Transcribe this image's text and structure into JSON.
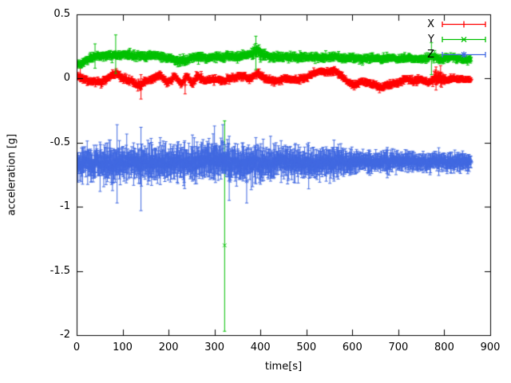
{
  "figure": {
    "background": "#ffffff"
  },
  "chart_data": {
    "type": "scatter",
    "style": "points-with-errorbars",
    "title": "",
    "xlabel": "time[s]",
    "ylabel": "acceleration [g]",
    "xlim": [
      0,
      900
    ],
    "ylim": [
      -2,
      0.5
    ],
    "xticks": [
      0,
      100,
      200,
      300,
      400,
      500,
      600,
      700,
      800,
      900
    ],
    "yticks": [
      -2,
      -1.5,
      -1,
      -0.5,
      0,
      0.5
    ],
    "grid": false,
    "legend_position": "top-right",
    "axis_color": "#000000",
    "series": [
      {
        "name": "X",
        "color": "#ff0000",
        "marker": "plus",
        "t_start": 2,
        "t_end": 858,
        "dt": 1,
        "seed": 11,
        "noise_sd": 0.008,
        "err_mean": 0.014,
        "err_var": 0.007,
        "baseline": [
          [
            0,
            0.03
          ],
          [
            12,
            0.0
          ],
          [
            30,
            -0.02
          ],
          [
            55,
            -0.03
          ],
          [
            70,
            0.01
          ],
          [
            85,
            0.04
          ],
          [
            100,
            0.0
          ],
          [
            118,
            -0.02
          ],
          [
            138,
            -0.06
          ],
          [
            150,
            -0.02
          ],
          [
            168,
            0.0
          ],
          [
            182,
            0.03
          ],
          [
            198,
            -0.04
          ],
          [
            214,
            0.02
          ],
          [
            228,
            -0.05
          ],
          [
            240,
            0.03
          ],
          [
            252,
            -0.04
          ],
          [
            264,
            0.02
          ],
          [
            278,
            -0.02
          ],
          [
            298,
            0.0
          ],
          [
            318,
            -0.02
          ],
          [
            338,
            0.0
          ],
          [
            358,
            0.02
          ],
          [
            378,
            0.0
          ],
          [
            394,
            0.04
          ],
          [
            408,
            0.0
          ],
          [
            430,
            -0.02
          ],
          [
            452,
            0.0
          ],
          [
            475,
            -0.01
          ],
          [
            495,
            0.0
          ],
          [
            512,
            0.03
          ],
          [
            530,
            0.06
          ],
          [
            548,
            0.05
          ],
          [
            562,
            0.06
          ],
          [
            576,
            0.02
          ],
          [
            590,
            -0.03
          ],
          [
            605,
            -0.05
          ],
          [
            622,
            -0.02
          ],
          [
            640,
            -0.04
          ],
          [
            660,
            -0.07
          ],
          [
            680,
            -0.05
          ],
          [
            700,
            -0.03
          ],
          [
            716,
            0.0
          ],
          [
            732,
            -0.02
          ],
          [
            750,
            0.0
          ],
          [
            766,
            -0.04
          ],
          [
            780,
            0.01
          ],
          [
            800,
            -0.02
          ],
          [
            820,
            0.0
          ],
          [
            858,
            -0.01
          ]
        ],
        "noise_profile": [
          [
            0,
            1
          ],
          [
            770,
            1
          ],
          [
            780,
            1.8
          ],
          [
            795,
            1.8
          ],
          [
            805,
            1
          ],
          [
            858,
            0.8
          ]
        ],
        "outliers": [
          {
            "t": 8,
            "y": 0.03,
            "lo": -0.02,
            "hi": 0.08
          },
          {
            "t": 140,
            "y": -0.06,
            "lo": -0.16,
            "hi": 0.03
          },
          {
            "t": 236,
            "y": -0.05,
            "lo": -0.12,
            "hi": 0.02
          },
          {
            "t": 782,
            "y": 0.0,
            "lo": -0.09,
            "hi": 0.09
          },
          {
            "t": 792,
            "y": 0.02,
            "lo": -0.06,
            "hi": 0.1
          }
        ]
      },
      {
        "name": "Y",
        "color": "#00c000",
        "marker": "cross",
        "t_start": 2,
        "t_end": 858,
        "dt": 1,
        "seed": 23,
        "noise_sd": 0.009,
        "err_mean": 0.016,
        "err_var": 0.008,
        "baseline": [
          [
            0,
            0.1
          ],
          [
            10,
            0.11
          ],
          [
            25,
            0.15
          ],
          [
            40,
            0.17
          ],
          [
            60,
            0.18
          ],
          [
            80,
            0.18
          ],
          [
            100,
            0.19
          ],
          [
            120,
            0.18
          ],
          [
            140,
            0.17
          ],
          [
            160,
            0.18
          ],
          [
            180,
            0.17
          ],
          [
            200,
            0.16
          ],
          [
            220,
            0.14
          ],
          [
            235,
            0.13
          ],
          [
            250,
            0.16
          ],
          [
            270,
            0.17
          ],
          [
            290,
            0.16
          ],
          [
            310,
            0.17
          ],
          [
            330,
            0.17
          ],
          [
            350,
            0.17
          ],
          [
            370,
            0.18
          ],
          [
            385,
            0.2
          ],
          [
            395,
            0.21
          ],
          [
            405,
            0.18
          ],
          [
            420,
            0.17
          ],
          [
            440,
            0.16
          ],
          [
            460,
            0.17
          ],
          [
            480,
            0.16
          ],
          [
            500,
            0.17
          ],
          [
            520,
            0.17
          ],
          [
            540,
            0.16
          ],
          [
            560,
            0.17
          ],
          [
            580,
            0.16
          ],
          [
            600,
            0.16
          ],
          [
            620,
            0.15
          ],
          [
            640,
            0.16
          ],
          [
            660,
            0.15
          ],
          [
            680,
            0.16
          ],
          [
            700,
            0.15
          ],
          [
            720,
            0.16
          ],
          [
            740,
            0.15
          ],
          [
            760,
            0.16
          ],
          [
            780,
            0.17
          ],
          [
            790,
            0.14
          ],
          [
            800,
            0.16
          ],
          [
            820,
            0.16
          ],
          [
            840,
            0.15
          ],
          [
            858,
            0.15
          ]
        ],
        "noise_profile": [
          [
            0,
            1
          ],
          [
            380,
            1
          ],
          [
            390,
            1.6
          ],
          [
            400,
            1.3
          ],
          [
            410,
            1
          ],
          [
            858,
            0.9
          ]
        ],
        "outliers": [
          {
            "t": 40,
            "y": 0.17,
            "lo": 0.08,
            "hi": 0.27
          },
          {
            "t": 85,
            "y": 0.19,
            "lo": 0.04,
            "hi": 0.34
          },
          {
            "t": 322,
            "y": -1.3,
            "lo": -1.97,
            "hi": -0.33
          },
          {
            "t": 390,
            "y": 0.21,
            "lo": 0.07,
            "hi": 0.33
          },
          {
            "t": 772,
            "y": 0.16,
            "lo": 0.03,
            "hi": 0.28
          }
        ]
      },
      {
        "name": "Z",
        "color": "#4169e1",
        "marker": "star",
        "t_start": 2,
        "t_end": 858,
        "dt": 1,
        "seed": 37,
        "noise_sd": 0.022,
        "err_mean": 0.05,
        "err_var": 0.035,
        "baseline": [
          [
            0,
            -0.66
          ],
          [
            40,
            -0.655
          ],
          [
            80,
            -0.66
          ],
          [
            120,
            -0.65
          ],
          [
            160,
            -0.655
          ],
          [
            200,
            -0.66
          ],
          [
            240,
            -0.65
          ],
          [
            280,
            -0.645
          ],
          [
            310,
            -0.63
          ],
          [
            325,
            -0.645
          ],
          [
            350,
            -0.66
          ],
          [
            390,
            -0.665
          ],
          [
            430,
            -0.655
          ],
          [
            470,
            -0.65
          ],
          [
            510,
            -0.66
          ],
          [
            550,
            -0.65
          ],
          [
            590,
            -0.655
          ],
          [
            630,
            -0.65
          ],
          [
            670,
            -0.648
          ],
          [
            710,
            -0.65
          ],
          [
            750,
            -0.655
          ],
          [
            800,
            -0.65
          ],
          [
            858,
            -0.65
          ]
        ],
        "noise_profile": [
          [
            0,
            1.0
          ],
          [
            60,
            1.25
          ],
          [
            90,
            1.4
          ],
          [
            120,
            1.1
          ],
          [
            150,
            1.3
          ],
          [
            200,
            1.15
          ],
          [
            250,
            1.2
          ],
          [
            300,
            1.35
          ],
          [
            340,
            1.2
          ],
          [
            380,
            1.25
          ],
          [
            420,
            1.1
          ],
          [
            460,
            1.05
          ],
          [
            500,
            1.1
          ],
          [
            540,
            1.0
          ],
          [
            580,
            0.95
          ],
          [
            620,
            0.8
          ],
          [
            660,
            0.75
          ],
          [
            700,
            0.7
          ],
          [
            740,
            0.7
          ],
          [
            780,
            0.65
          ],
          [
            820,
            0.6
          ],
          [
            858,
            0.6
          ]
        ],
        "outliers": [
          {
            "t": 88,
            "y": -0.68,
            "lo": -0.97,
            "hi": -0.36
          },
          {
            "t": 140,
            "y": -0.7,
            "lo": -1.03,
            "hi": -0.38
          },
          {
            "t": 252,
            "y": -0.62,
            "lo": -0.8,
            "hi": -0.44
          },
          {
            "t": 300,
            "y": -0.55,
            "lo": -0.75,
            "hi": -0.37
          },
          {
            "t": 318,
            "y": -0.5,
            "lo": -0.72,
            "hi": -0.36
          },
          {
            "t": 332,
            "y": -0.75,
            "lo": -0.95,
            "hi": -0.45
          },
          {
            "t": 370,
            "y": -0.8,
            "lo": -0.97,
            "hi": -0.55
          },
          {
            "t": 422,
            "y": -0.6,
            "lo": -0.8,
            "hi": -0.45
          },
          {
            "t": 505,
            "y": -0.66,
            "lo": -0.86,
            "hi": -0.5
          },
          {
            "t": 560,
            "y": -0.64,
            "lo": -0.8,
            "hi": -0.48
          }
        ]
      }
    ]
  }
}
